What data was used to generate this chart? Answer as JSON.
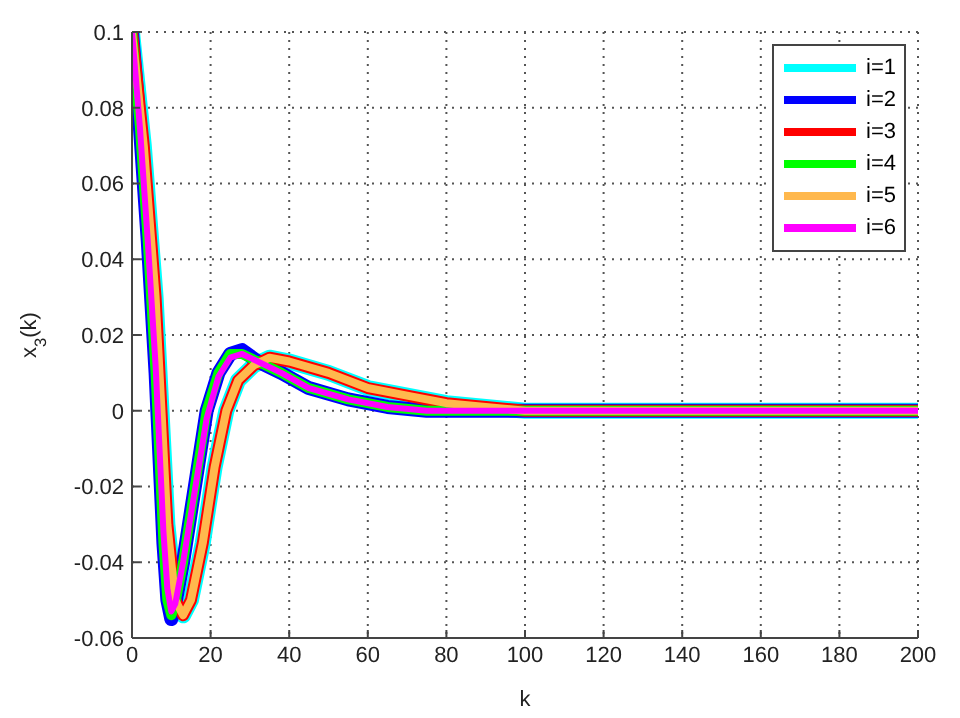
{
  "chart_data": {
    "type": "line",
    "xlabel": "k",
    "ylabel": "x$_{3}$(k)",
    "xlim": [
      0,
      200
    ],
    "xticks": [
      0,
      20,
      40,
      60,
      80,
      100,
      120,
      140,
      160,
      180,
      200
    ],
    "ylim": [
      -0.06,
      0.1
    ],
    "yticks": [
      -0.06,
      -0.04,
      -0.02,
      0,
      0.02,
      0.04,
      0.06,
      0.08,
      0.1
    ],
    "grid": true,
    "legend": "top right",
    "marker": "none",
    "line_style": "solid",
    "series": [
      {
        "name": "i=1",
        "color": "#00ffff",
        "x": [
          0,
          3,
          6,
          9,
          11,
          13,
          15,
          18,
          21,
          24,
          27,
          31,
          35,
          40,
          50,
          60,
          70,
          80,
          90,
          100,
          110,
          200
        ],
        "values": [
          0.1,
          0.07,
          0.03,
          -0.03,
          -0.05,
          -0.054,
          -0.05,
          -0.035,
          -0.015,
          0.0,
          0.008,
          0.012,
          0.014,
          0.013,
          0.01,
          0.006,
          0.004,
          0.002,
          0.001,
          0,
          0,
          0
        ]
      },
      {
        "name": "i=2",
        "color": "#0000ff",
        "x": [
          0,
          2,
          4,
          6,
          8,
          9,
          10,
          11,
          13,
          16,
          19,
          22,
          25,
          28,
          32,
          38,
          45,
          55,
          65,
          75,
          85,
          200
        ],
        "values": [
          0.1,
          0.075,
          0.045,
          0.01,
          -0.035,
          -0.05,
          -0.055,
          -0.051,
          -0.04,
          -0.02,
          0.0,
          0.01,
          0.015,
          0.016,
          0.013,
          0.01,
          0.006,
          0.003,
          0.001,
          0,
          0,
          0
        ]
      },
      {
        "name": "i=3",
        "color": "#ff0000",
        "x": [
          0,
          3,
          6,
          9,
          11,
          13,
          15,
          18,
          21,
          24,
          27,
          31,
          35,
          40,
          50,
          60,
          70,
          80,
          90,
          100,
          110,
          200
        ],
        "values": [
          0.1,
          0.07,
          0.03,
          -0.03,
          -0.05,
          -0.054,
          -0.05,
          -0.035,
          -0.015,
          0.0,
          0.008,
          0.012,
          0.014,
          0.013,
          0.01,
          0.006,
          0.004,
          0.002,
          0.001,
          0,
          0,
          0
        ]
      },
      {
        "name": "i=4",
        "color": "#00ff00",
        "x": [
          0,
          2,
          4,
          6,
          8,
          9,
          10,
          11,
          13,
          16,
          19,
          22,
          25,
          28,
          32,
          38,
          45,
          55,
          65,
          75,
          85,
          200
        ],
        "values": [
          0.1,
          0.075,
          0.045,
          0.01,
          -0.035,
          -0.05,
          -0.054,
          -0.051,
          -0.04,
          -0.02,
          0.0,
          0.01,
          0.015,
          0.015,
          0.013,
          0.01,
          0.006,
          0.003,
          0.001,
          0,
          0,
          0
        ]
      },
      {
        "name": "i=5",
        "color": "#ffb84d",
        "x": [
          0,
          3,
          6,
          9,
          11,
          13,
          15,
          18,
          21,
          24,
          27,
          31,
          35,
          40,
          50,
          60,
          70,
          80,
          90,
          100,
          110,
          200
        ],
        "values": [
          0.1,
          0.07,
          0.03,
          -0.03,
          -0.05,
          -0.054,
          -0.05,
          -0.035,
          -0.015,
          0.0,
          0.008,
          0.012,
          0.014,
          0.013,
          0.01,
          0.006,
          0.004,
          0.002,
          0.001,
          0,
          0,
          0
        ]
      },
      {
        "name": "i=6",
        "color": "#ff00ff",
        "x": [
          0,
          2,
          4,
          6,
          8,
          9,
          10,
          11,
          13,
          16,
          19,
          22,
          25,
          28,
          32,
          38,
          45,
          55,
          65,
          75,
          85,
          200
        ],
        "values": [
          0.1,
          0.075,
          0.045,
          0.012,
          -0.032,
          -0.047,
          -0.053,
          -0.051,
          -0.04,
          -0.021,
          -0.002,
          0.009,
          0.014,
          0.015,
          0.013,
          0.01,
          0.006,
          0.003,
          0.001,
          0,
          0,
          0
        ]
      }
    ]
  }
}
